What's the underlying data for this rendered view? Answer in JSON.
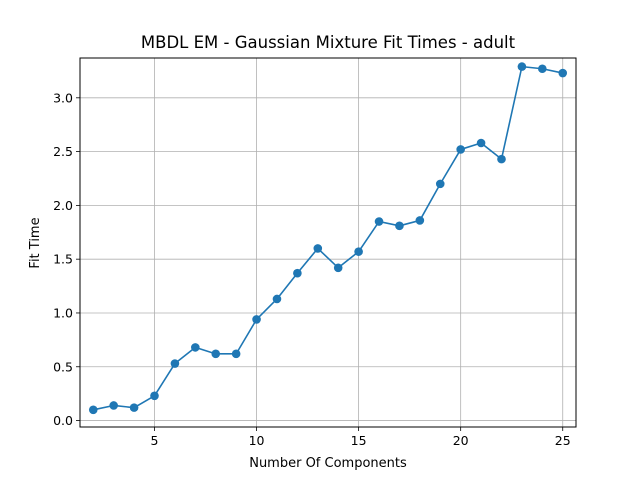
{
  "chart_data": {
    "type": "line",
    "title": "MBDL EM - Gaussian Mixture Fit Times - adult",
    "xlabel": "Number Of Components",
    "ylabel": "Fit Time",
    "xlim": [
      1.35,
      25.65
    ],
    "ylim": [
      -0.06,
      3.37
    ],
    "xticks": [
      5,
      10,
      15,
      20,
      25
    ],
    "yticks": [
      0.0,
      0.5,
      1.0,
      1.5,
      2.0,
      2.5,
      3.0
    ],
    "xtick_labels": [
      "5",
      "10",
      "15",
      "20",
      "25"
    ],
    "ytick_labels": [
      "0.0",
      "0.5",
      "1.0",
      "1.5",
      "2.0",
      "2.5",
      "3.0"
    ],
    "grid": true,
    "legend": "none",
    "series": [
      {
        "color": "#1f77b4",
        "marker": "circle",
        "x": [
          2,
          3,
          4,
          5,
          6,
          7,
          8,
          9,
          10,
          11,
          12,
          13,
          14,
          15,
          16,
          17,
          18,
          19,
          20,
          21,
          22,
          23,
          24,
          25
        ],
        "y": [
          0.1,
          0.14,
          0.12,
          0.23,
          0.53,
          0.68,
          0.62,
          0.62,
          0.94,
          1.13,
          1.37,
          1.6,
          1.42,
          1.57,
          1.85,
          1.81,
          1.86,
          2.2,
          2.52,
          2.58,
          2.43,
          3.29,
          3.27,
          3.23
        ]
      }
    ]
  }
}
